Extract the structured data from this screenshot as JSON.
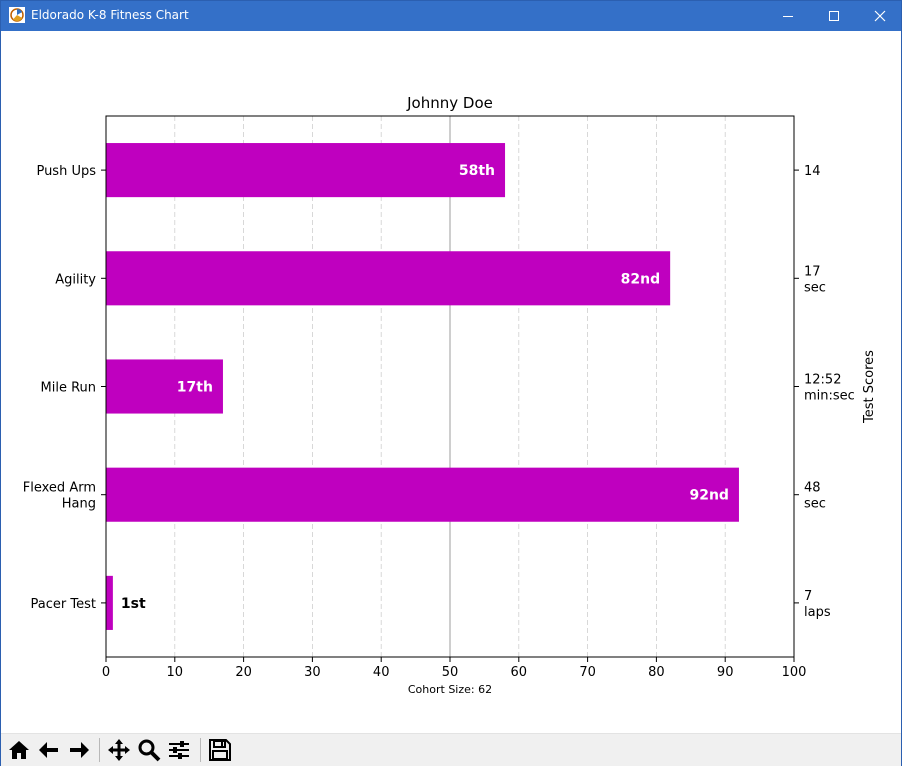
{
  "window": {
    "title": "Eldorado K-8 Fitness Chart",
    "app_icon": "matplotlib-figure-icon",
    "controls": [
      "minimize-icon",
      "maximize-icon",
      "close-icon"
    ]
  },
  "chart_data": {
    "type": "bar",
    "orientation": "horizontal",
    "title": "Johnny Doe",
    "xlabel": "Cohort Size: 62",
    "ylabel": "",
    "ylabel_right": "Test Scores",
    "xlim": [
      0,
      100
    ],
    "xticks": [
      "0",
      "10",
      "20",
      "30",
      "40",
      "50",
      "60",
      "70",
      "80",
      "90",
      "100"
    ],
    "median_line": 50,
    "grid": "x-dashed",
    "bar_color": "#bf00bf",
    "categories": [
      "Pacer Test",
      "Flexed Arm\nHang",
      "Mile Run",
      "Agility",
      "Push Ups"
    ],
    "values": [
      1,
      92,
      17,
      82,
      58
    ],
    "rank_labels": [
      "1st",
      "92nd",
      "17th",
      "82nd",
      "58th"
    ],
    "scores": [
      "7\nlaps",
      "48\nsec",
      "12:52\nmin:sec",
      "17\nsec",
      "14"
    ]
  },
  "toolbar": {
    "buttons": [
      "home-icon",
      "back-icon",
      "forward-icon",
      "pan-icon",
      "zoom-icon",
      "configure-subplots-icon",
      "save-icon"
    ]
  }
}
